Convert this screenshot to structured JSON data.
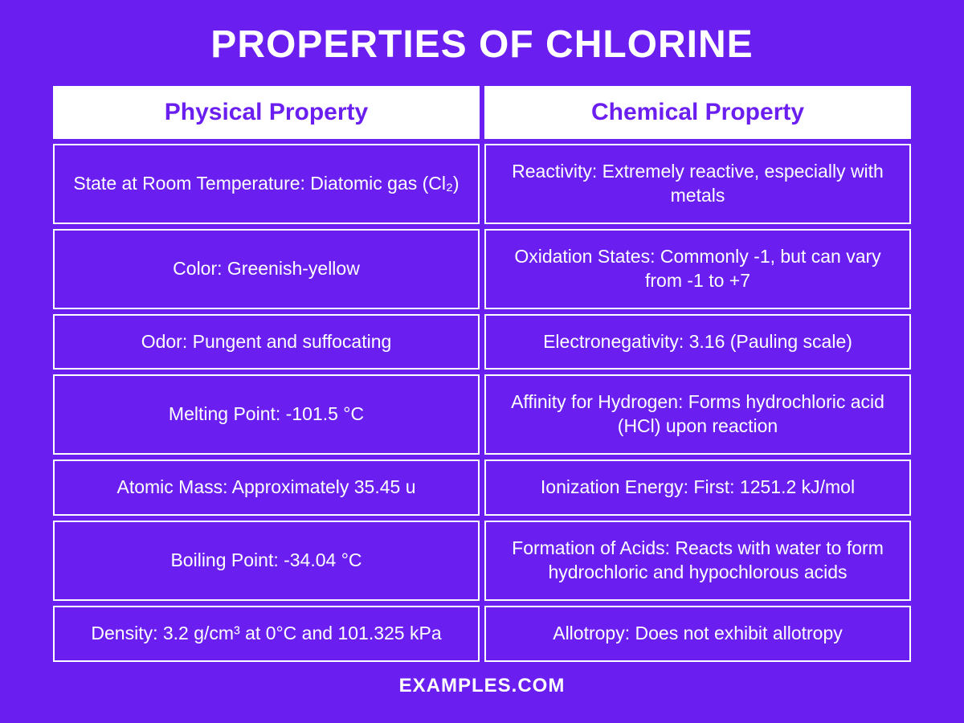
{
  "title": "PROPERTIES OF CHLORINE",
  "footer": "EXAMPLES.COM",
  "columns": {
    "col0": "Physical Property",
    "col1": "Chemical Property"
  },
  "rows": [
    {
      "c0": "State at Room Temperature: Diatomic gas (Cl₂)",
      "c1": "Reactivity: Extremely reactive, especially with metals"
    },
    {
      "c0": "Color: Greenish-yellow",
      "c1": "Oxidation States: Commonly -1, but can vary from -1 to +7"
    },
    {
      "c0": "Odor: Pungent and suffocating",
      "c1": "Electronegativity: 3.16 (Pauling scale)"
    },
    {
      "c0": "Melting Point: -101.5 °C",
      "c1": "Affinity for Hydrogen: Forms hydrochloric acid (HCl) upon reaction"
    },
    {
      "c0": "Atomic Mass: Approximately 35.45 u",
      "c1": "Ionization Energy: First: 1251.2 kJ/mol"
    },
    {
      "c0": "Boiling Point: -34.04 °C",
      "c1": "Formation of Acids: Reacts with water to form hydrochloric and hypochlorous acids"
    },
    {
      "c0": "Density: 3.2 g/cm³ at 0°C and 101.325 kPa",
      "c1": "Allotropy: Does not exhibit allotropy"
    }
  ],
  "style": {
    "background_color": "#6a1ff0",
    "header_bg": "#ffffff",
    "header_text_color": "#6a1ff0",
    "cell_border_color": "#ffffff",
    "cell_text_color": "#ffffff",
    "title_color": "#ffffff",
    "title_fontsize": 48,
    "header_fontsize": 30,
    "cell_fontsize": 23,
    "footer_fontsize": 24,
    "columns_count": 2,
    "rows_count": 7
  }
}
